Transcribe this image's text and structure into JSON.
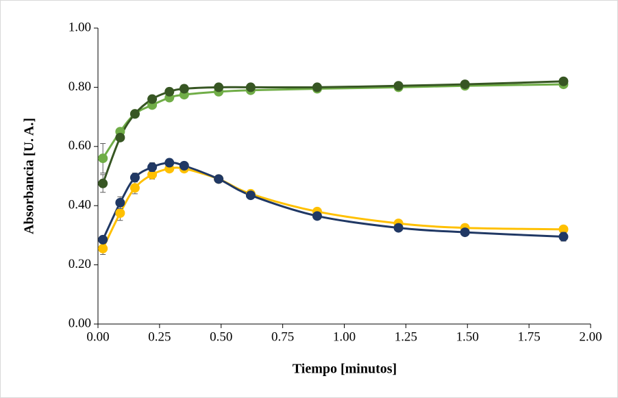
{
  "chart_data": {
    "type": "line",
    "x_label": "Tiempo [minutos]",
    "y_label": "Absorbancia [U. A.]",
    "x": [
      0.02,
      0.09,
      0.15,
      0.22,
      0.29,
      0.35,
      0.49,
      0.62,
      0.89,
      1.22,
      1.49,
      1.89
    ],
    "series": [
      {
        "color": "#70ad47",
        "values": [
          0.56,
          0.65,
          0.71,
          0.74,
          0.765,
          0.775,
          0.785,
          0.79,
          0.795,
          0.8,
          0.805,
          0.81
        ],
        "errors": [
          0.05,
          0.01,
          0.01,
          0.01,
          0.01,
          0.01,
          0.01,
          0.01,
          0.01,
          0.01,
          0.01,
          0.01
        ]
      },
      {
        "color": "#375623",
        "values": [
          0.475,
          0.63,
          0.71,
          0.76,
          0.785,
          0.795,
          0.8,
          0.8,
          0.8,
          0.805,
          0.81,
          0.82
        ],
        "errors": [
          0.03,
          0.01,
          0.01,
          0.01,
          0.01,
          0.01,
          0.01,
          0.01,
          0.01,
          0.01,
          0.01,
          0.01
        ]
      },
      {
        "color": "#ffc000",
        "values": [
          0.255,
          0.375,
          0.46,
          0.505,
          0.525,
          0.525,
          0.49,
          0.44,
          0.38,
          0.34,
          0.325,
          0.32
        ],
        "errors": [
          0.02,
          0.025,
          0.02,
          0.015,
          0.01,
          0.01,
          0.01,
          0.01,
          0.01,
          0.01,
          0.01,
          0.01
        ]
      },
      {
        "color": "#203864",
        "values": [
          0.285,
          0.41,
          0.495,
          0.53,
          0.545,
          0.535,
          0.49,
          0.435,
          0.365,
          0.325,
          0.31,
          0.295
        ],
        "errors": [
          0.01,
          0.02,
          0.015,
          0.015,
          0.01,
          0.01,
          0.01,
          0.01,
          0.01,
          0.01,
          0.01,
          0.015
        ]
      }
    ],
    "xlim": [
      0,
      2
    ],
    "xticks": [
      {
        "value": 0,
        "label": "0.00"
      },
      {
        "value": 0.25,
        "label": "0.25"
      },
      {
        "value": 0.5,
        "label": "0.50"
      },
      {
        "value": 0.75,
        "label": "0.75"
      },
      {
        "value": 1,
        "label": "1.00"
      },
      {
        "value": 1.25,
        "label": "1.25"
      },
      {
        "value": 1.5,
        "label": "1.50"
      },
      {
        "value": 1.75,
        "label": "1.75"
      },
      {
        "value": 2,
        "label": "2.00"
      }
    ],
    "ylim": [
      0,
      1
    ],
    "yticks": [
      {
        "value": 0,
        "label": "0.00"
      },
      {
        "value": 0.2,
        "label": "0.20"
      },
      {
        "value": 0.4,
        "label": "0.40"
      },
      {
        "value": 0.6,
        "label": "0.60"
      },
      {
        "value": 0.8,
        "label": "0.80"
      },
      {
        "value": 1,
        "label": "1.00"
      }
    ],
    "grid": false
  }
}
